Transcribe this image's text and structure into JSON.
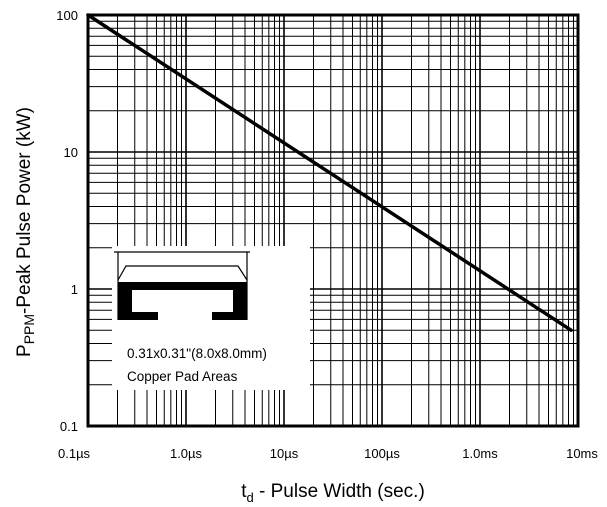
{
  "chart_data": {
    "type": "line",
    "title": "",
    "xscale": "log",
    "yscale": "log",
    "xlim": [
      1e-07,
      0.01
    ],
    "ylim": [
      0.1,
      100
    ],
    "grid": true,
    "x_ticks": [
      {
        "value": 1e-07,
        "label": "0.1µs"
      },
      {
        "value": 1e-06,
        "label": "1.0µs"
      },
      {
        "value": 1e-05,
        "label": "10µs"
      },
      {
        "value": 0.0001,
        "label": "100µs"
      },
      {
        "value": 0.001,
        "label": "1.0ms"
      },
      {
        "value": 0.01,
        "label": "10ms"
      }
    ],
    "y_ticks": [
      {
        "value": 0.1,
        "label": "0.1"
      },
      {
        "value": 1,
        "label": "1"
      },
      {
        "value": 10,
        "label": "10"
      },
      {
        "value": 100,
        "label": "100"
      }
    ],
    "xlabel": {
      "main": "t",
      "sub": "d",
      "rest": " - Pulse Width (sec.)"
    },
    "ylabel": {
      "main": "P",
      "sub": "PPM",
      "rest": "-Peak Pulse Power (kW)"
    },
    "series": [
      {
        "x": [
          1e-07,
          0.0085
        ],
        "y": [
          100,
          0.5
        ]
      }
    ],
    "inset": {
      "caption_line1": "0.31x0.31\"(8.0x8.0mm)",
      "caption_line2": "Copper Pad Areas"
    }
  }
}
